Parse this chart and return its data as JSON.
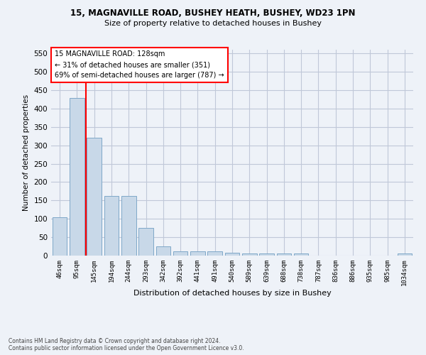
{
  "title1": "15, MAGNAVILLE ROAD, BUSHEY HEATH, BUSHEY, WD23 1PN",
  "title2": "Size of property relative to detached houses in Bushey",
  "xlabel": "Distribution of detached houses by size in Bushey",
  "ylabel": "Number of detached properties",
  "footnote": "Contains HM Land Registry data © Crown copyright and database right 2024.\nContains public sector information licensed under the Open Government Licence v3.0.",
  "bin_labels": [
    "46sqm",
    "95sqm",
    "145sqm",
    "194sqm",
    "244sqm",
    "293sqm",
    "342sqm",
    "392sqm",
    "441sqm",
    "491sqm",
    "540sqm",
    "589sqm",
    "639sqm",
    "688sqm",
    "738sqm",
    "787sqm",
    "836sqm",
    "886sqm",
    "935sqm",
    "985sqm",
    "1034sqm"
  ],
  "bar_values": [
    105,
    428,
    320,
    163,
    163,
    76,
    25,
    11,
    12,
    11,
    8,
    5,
    5,
    5,
    5,
    0,
    0,
    0,
    0,
    0,
    5
  ],
  "bar_color": "#c8d8e8",
  "bar_edge_color": "#7fa8c8",
  "grid_color": "#c0c8d8",
  "background_color": "#eef2f8",
  "annotation_box_text": "15 MAGNAVILLE ROAD: 128sqm\n← 31% of detached houses are smaller (351)\n69% of semi-detached houses are larger (787) →",
  "annotation_box_color": "red",
  "ylim": [
    0,
    560
  ],
  "yticks": [
    0,
    50,
    100,
    150,
    200,
    250,
    300,
    350,
    400,
    450,
    500,
    550
  ]
}
